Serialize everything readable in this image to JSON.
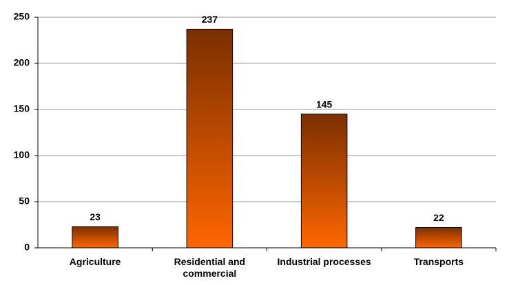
{
  "chart_data": {
    "type": "bar",
    "categories": [
      "Agriculture",
      "Residential and commercial",
      "Industrial processes",
      "Transports"
    ],
    "values": [
      23,
      237,
      145,
      22
    ],
    "color": "#ff6600",
    "ylim": [
      0,
      250
    ],
    "yticks": [
      0,
      50,
      100,
      150,
      200,
      250
    ],
    "grid": true
  }
}
